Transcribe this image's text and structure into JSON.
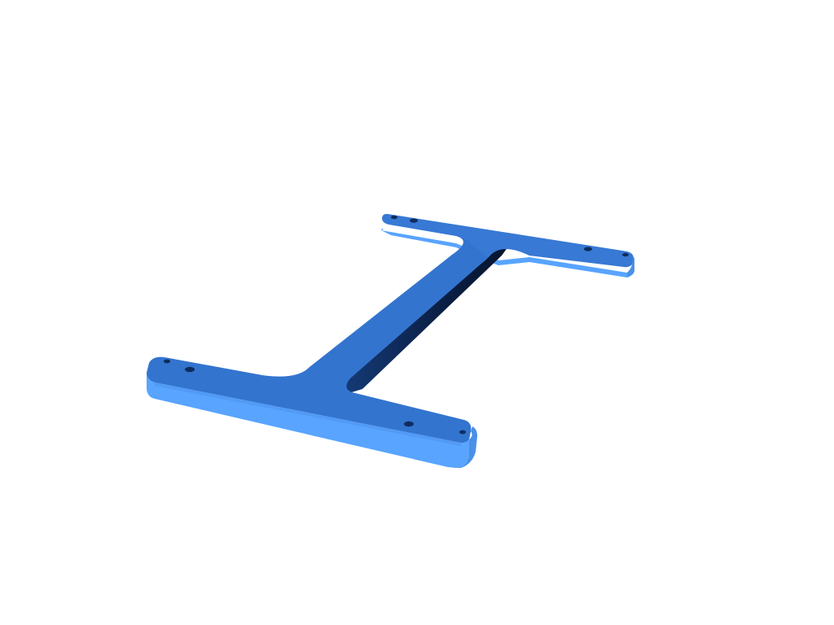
{
  "scene": {
    "background_color": "#ffffff",
    "part": {
      "kind": "H-shaped bracket plate",
      "colors": {
        "top_face": "#3374cf",
        "side_light": "#58a4ff",
        "side_mid": "#4a90e8",
        "shadow": "#0d2550",
        "hole": "#0e2d5e"
      },
      "mounting_hole_count": 8
    }
  }
}
